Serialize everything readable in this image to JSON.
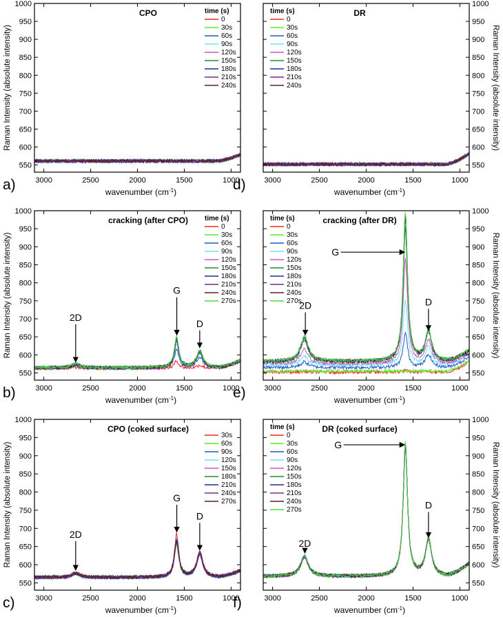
{
  "figure": {
    "ylabel": "Raman Intensity (absolute intensity)",
    "xlabel_main": "wavenumber (cm",
    "xlabel_sup": "-1",
    "xlabel_tail": ")"
  },
  "colors": [
    "#ff2020",
    "#55ee22",
    "#2255cc",
    "#66e8f0",
    "#cc55cc",
    "#228833",
    "#1a2a99",
    "#7a2a88",
    "#5a1f2a",
    "#44dd44"
  ],
  "chart_data": [
    {
      "type": "line",
      "panel_letter": "a)",
      "title": "CPO",
      "legend_title": "time (s)",
      "legend_side": "right",
      "xlim": [
        3100,
        900
      ],
      "ylim": [
        530,
        1000
      ],
      "xticks": [
        3000,
        2500,
        2000,
        1500,
        1000
      ],
      "yticks": [
        550,
        600,
        650,
        700,
        750,
        800,
        850,
        900,
        950,
        1000
      ],
      "series": [
        {
          "name": "0",
          "values": {
            "baseline": 561,
            "tail": 18,
            "G": 0,
            "D": 0,
            "D2": 0
          }
        },
        {
          "name": "30s",
          "values": {
            "baseline": 561,
            "tail": 18,
            "G": 0,
            "D": 0,
            "D2": 0
          }
        },
        {
          "name": "60s",
          "values": {
            "baseline": 561,
            "tail": 18,
            "G": 0,
            "D": 0,
            "D2": 0
          }
        },
        {
          "name": "90s",
          "values": {
            "baseline": 561,
            "tail": 18,
            "G": 0,
            "D": 0,
            "D2": 0
          }
        },
        {
          "name": "120s",
          "values": {
            "baseline": 561,
            "tail": 18,
            "G": 0,
            "D": 0,
            "D2": 0
          }
        },
        {
          "name": "150s",
          "values": {
            "baseline": 561,
            "tail": 18,
            "G": 0,
            "D": 0,
            "D2": 0
          }
        },
        {
          "name": "180s",
          "values": {
            "baseline": 561,
            "tail": 18,
            "G": 0,
            "D": 0,
            "D2": 0
          }
        },
        {
          "name": "210s",
          "values": {
            "baseline": 561,
            "tail": 18,
            "G": 0,
            "D": 0,
            "D2": 0
          }
        },
        {
          "name": "240s",
          "values": {
            "baseline": 561,
            "tail": 18,
            "G": 0,
            "D": 0,
            "D2": 0
          }
        }
      ],
      "annotations": []
    },
    {
      "type": "line",
      "panel_letter": "d)",
      "title": "DR",
      "legend_title": "time (s)",
      "legend_side": "left",
      "xlim": [
        3100,
        900
      ],
      "ylim": [
        530,
        1000
      ],
      "xticks": [
        3000,
        2500,
        2000,
        1500,
        1000
      ],
      "yticks": [
        550,
        600,
        650,
        700,
        750,
        800,
        850,
        900,
        950,
        1000
      ],
      "series": [
        {
          "name": "0",
          "values": {
            "baseline": 552,
            "tail": 30,
            "G": 0,
            "D": 0,
            "D2": 0
          }
        },
        {
          "name": "30s",
          "values": {
            "baseline": 552,
            "tail": 30,
            "G": 0,
            "D": 0,
            "D2": 0
          }
        },
        {
          "name": "60s",
          "values": {
            "baseline": 552,
            "tail": 30,
            "G": 0,
            "D": 0,
            "D2": 0
          }
        },
        {
          "name": "90s",
          "values": {
            "baseline": 552,
            "tail": 30,
            "G": 0,
            "D": 0,
            "D2": 0
          }
        },
        {
          "name": "120s",
          "values": {
            "baseline": 552,
            "tail": 30,
            "G": 0,
            "D": 0,
            "D2": 0
          }
        },
        {
          "name": "150s",
          "values": {
            "baseline": 552,
            "tail": 30,
            "G": 0,
            "D": 0,
            "D2": 0
          }
        },
        {
          "name": "180s",
          "values": {
            "baseline": 552,
            "tail": 30,
            "G": 0,
            "D": 0,
            "D2": 0
          }
        },
        {
          "name": "210s",
          "values": {
            "baseline": 552,
            "tail": 30,
            "G": 0,
            "D": 0,
            "D2": 0
          }
        },
        {
          "name": "240s",
          "values": {
            "baseline": 552,
            "tail": 30,
            "G": 0,
            "D": 0,
            "D2": 0
          }
        }
      ],
      "annotations": []
    },
    {
      "type": "line",
      "panel_letter": "b)",
      "title": "cracking (after CPO)",
      "legend_title": "time (s)",
      "legend_side": "right",
      "xlim": [
        3100,
        900
      ],
      "ylim": [
        530,
        1000
      ],
      "xticks": [
        3000,
        2500,
        2000,
        1500,
        1000
      ],
      "yticks": [
        550,
        600,
        650,
        700,
        750,
        800,
        850,
        900,
        950,
        1000
      ],
      "series": [
        {
          "name": "0",
          "values": {
            "baseline": 563,
            "tail": 20,
            "G": 20,
            "D": 8,
            "D2": 3
          }
        },
        {
          "name": "30s",
          "values": {
            "baseline": 564,
            "tail": 20,
            "G": 80,
            "D": 45,
            "D2": 10
          }
        },
        {
          "name": "60s",
          "values": {
            "baseline": 564,
            "tail": 20,
            "G": 50,
            "D": 30,
            "D2": 6
          }
        },
        {
          "name": "90s",
          "values": {
            "baseline": 564,
            "tail": 20,
            "G": 65,
            "D": 38,
            "D2": 8
          }
        },
        {
          "name": "120s",
          "values": {
            "baseline": 564,
            "tail": 20,
            "G": 75,
            "D": 42,
            "D2": 9
          }
        },
        {
          "name": "150s",
          "values": {
            "baseline": 564,
            "tail": 20,
            "G": 82,
            "D": 46,
            "D2": 10
          }
        },
        {
          "name": "180s",
          "values": {
            "baseline": 564,
            "tail": 20,
            "G": 78,
            "D": 44,
            "D2": 10
          }
        },
        {
          "name": "210s",
          "values": {
            "baseline": 564,
            "tail": 20,
            "G": 80,
            "D": 45,
            "D2": 10
          }
        },
        {
          "name": "240s",
          "values": {
            "baseline": 564,
            "tail": 20,
            "G": 83,
            "D": 46,
            "D2": 10
          }
        },
        {
          "name": "270s",
          "values": {
            "baseline": 565,
            "tail": 20,
            "G": 85,
            "D": 47,
            "D2": 11
          }
        }
      ],
      "annotations": [
        {
          "label": "2D",
          "x": 2660,
          "y_tip": 580,
          "y_tail": 685,
          "dir": "down"
        },
        {
          "label": "G",
          "x": 1580,
          "y_tip": 655,
          "y_tail": 760,
          "dir": "down"
        },
        {
          "label": "D",
          "x": 1335,
          "y_tip": 620,
          "y_tail": 668,
          "dir": "down"
        }
      ]
    },
    {
      "type": "line",
      "panel_letter": "e)",
      "title": "cracking (after DR)",
      "legend_title": "time (s)",
      "legend_side": "left",
      "xlim": [
        3100,
        900
      ],
      "ylim": [
        530,
        1000
      ],
      "xticks": [
        3000,
        2500,
        2000,
        1500,
        1000
      ],
      "yticks": [
        550,
        600,
        650,
        700,
        750,
        800,
        850,
        900,
        950,
        1000
      ],
      "series": [
        {
          "name": "0",
          "values": {
            "baseline": 552,
            "tail": 30,
            "G": 5,
            "D": 3,
            "D2": 2
          }
        },
        {
          "name": "30s",
          "values": {
            "baseline": 555,
            "tail": 30,
            "G": 0,
            "D": 0,
            "D2": 0
          }
        },
        {
          "name": "60s",
          "values": {
            "baseline": 565,
            "tail": 30,
            "G": 95,
            "D": 35,
            "D2": 15
          }
        },
        {
          "name": "90s",
          "values": {
            "baseline": 572,
            "tail": 30,
            "G": 180,
            "D": 50,
            "D2": 25
          }
        },
        {
          "name": "120s",
          "values": {
            "baseline": 575,
            "tail": 30,
            "G": 290,
            "D": 65,
            "D2": 40
          }
        },
        {
          "name": "150s",
          "values": {
            "baseline": 580,
            "tail": 30,
            "G": 370,
            "D": 80,
            "D2": 60
          }
        },
        {
          "name": "180s",
          "values": {
            "baseline": 581,
            "tail": 30,
            "G": 395,
            "D": 82,
            "D2": 64
          }
        },
        {
          "name": "210s",
          "values": {
            "baseline": 582,
            "tail": 30,
            "G": 405,
            "D": 83,
            "D2": 66
          }
        },
        {
          "name": "240s",
          "values": {
            "baseline": 582,
            "tail": 30,
            "G": 410,
            "D": 84,
            "D2": 67
          }
        },
        {
          "name": "270s",
          "values": {
            "baseline": 583,
            "tail": 30,
            "G": 410,
            "D": 85,
            "D2": 68
          }
        }
      ],
      "annotations": [
        {
          "label": "2D",
          "x": 2650,
          "y_tip": 655,
          "y_tail": 718,
          "dir": "down"
        },
        {
          "label": "G",
          "x": 1575,
          "y_tip": 885,
          "x_from": 2330,
          "dir": "right"
        },
        {
          "label": "D",
          "x": 1335,
          "y_tip": 668,
          "y_tail": 728,
          "dir": "down"
        }
      ]
    },
    {
      "type": "line",
      "panel_letter": "c)",
      "title": "CPO (coked surface)",
      "legend_title": "",
      "legend_side": "right",
      "xlim": [
        3100,
        900
      ],
      "ylim": [
        530,
        1000
      ],
      "xticks": [
        3000,
        2500,
        2000,
        1500,
        1000
      ],
      "yticks": [
        550,
        600,
        650,
        700,
        750,
        800,
        850,
        900,
        950,
        1000
      ],
      "series": [
        {
          "name": "30s",
          "values": {
            "baseline": 565,
            "tail": 18,
            "G": 118,
            "D": 70,
            "D2": 12
          }
        },
        {
          "name": "60s",
          "values": {
            "baseline": 565,
            "tail": 18,
            "G": 90,
            "D": 62,
            "D2": 10
          }
        },
        {
          "name": "90s",
          "values": {
            "baseline": 565,
            "tail": 18,
            "G": 110,
            "D": 68,
            "D2": 11
          }
        },
        {
          "name": "120s",
          "values": {
            "baseline": 565,
            "tail": 18,
            "G": 105,
            "D": 66,
            "D2": 11
          }
        },
        {
          "name": "150s",
          "values": {
            "baseline": 565,
            "tail": 18,
            "G": 100,
            "D": 65,
            "D2": 11
          }
        },
        {
          "name": "180s",
          "values": {
            "baseline": 565,
            "tail": 18,
            "G": 98,
            "D": 64,
            "D2": 11
          }
        },
        {
          "name": "210s",
          "values": {
            "baseline": 565,
            "tail": 18,
            "G": 96,
            "D": 63,
            "D2": 11
          }
        },
        {
          "name": "240s",
          "values": {
            "baseline": 565,
            "tail": 18,
            "G": 95,
            "D": 63,
            "D2": 11
          }
        },
        {
          "name": "270s",
          "values": {
            "baseline": 566,
            "tail": 18,
            "G": 102,
            "D": 66,
            "D2": 11
          }
        }
      ],
      "annotations": [
        {
          "label": "2D",
          "x": 2660,
          "y_tip": 585,
          "y_tail": 665,
          "dir": "down"
        },
        {
          "label": "G",
          "x": 1580,
          "y_tip": 690,
          "y_tail": 765,
          "dir": "down"
        },
        {
          "label": "D",
          "x": 1335,
          "y_tip": 640,
          "y_tail": 715,
          "dir": "down"
        }
      ]
    },
    {
      "type": "line",
      "panel_letter": "f)",
      "title": "DR (coked surface)",
      "legend_title": "time (s)",
      "legend_side": "left",
      "xlim": [
        3100,
        900
      ],
      "ylim": [
        530,
        1000
      ],
      "xticks": [
        3000,
        2500,
        2000,
        1500,
        1000
      ],
      "yticks": [
        550,
        600,
        650,
        700,
        750,
        800,
        850,
        900,
        950,
        1000
      ],
      "series": [
        {
          "name": "0",
          "values": {
            "baseline": 568,
            "tail": 35,
            "G": 365,
            "D": 100,
            "D2": 55
          }
        },
        {
          "name": "30s",
          "values": {
            "baseline": 568,
            "tail": 35,
            "G": 360,
            "D": 99,
            "D2": 54
          }
        },
        {
          "name": "60s",
          "values": {
            "baseline": 568,
            "tail": 35,
            "G": 350,
            "D": 98,
            "D2": 53
          }
        },
        {
          "name": "90s",
          "values": {
            "baseline": 568,
            "tail": 35,
            "G": 362,
            "D": 99,
            "D2": 54
          }
        },
        {
          "name": "120s",
          "values": {
            "baseline": 568,
            "tail": 35,
            "G": 358,
            "D": 98,
            "D2": 54
          }
        },
        {
          "name": "150s",
          "values": {
            "baseline": 568,
            "tail": 35,
            "G": 360,
            "D": 99,
            "D2": 54
          }
        },
        {
          "name": "180s",
          "values": {
            "baseline": 568,
            "tail": 35,
            "G": 365,
            "D": 100,
            "D2": 55
          }
        },
        {
          "name": "210s",
          "values": {
            "baseline": 568,
            "tail": 35,
            "G": 363,
            "D": 99,
            "D2": 55
          }
        },
        {
          "name": "240s",
          "values": {
            "baseline": 568,
            "tail": 35,
            "G": 361,
            "D": 99,
            "D2": 54
          }
        },
        {
          "name": "270s",
          "values": {
            "baseline": 568,
            "tail": 35,
            "G": 366,
            "D": 100,
            "D2": 55
          }
        }
      ],
      "annotations": [
        {
          "label": "2D",
          "x": 2655,
          "y_tip": 632,
          "x_from": 2655,
          "dir": "down-short"
        },
        {
          "label": "G",
          "x": 1575,
          "y_tip": 930,
          "x_from": 2300,
          "dir": "right"
        },
        {
          "label": "D",
          "x": 1335,
          "y_tip": 675,
          "y_tail": 745,
          "dir": "down"
        }
      ]
    }
  ]
}
